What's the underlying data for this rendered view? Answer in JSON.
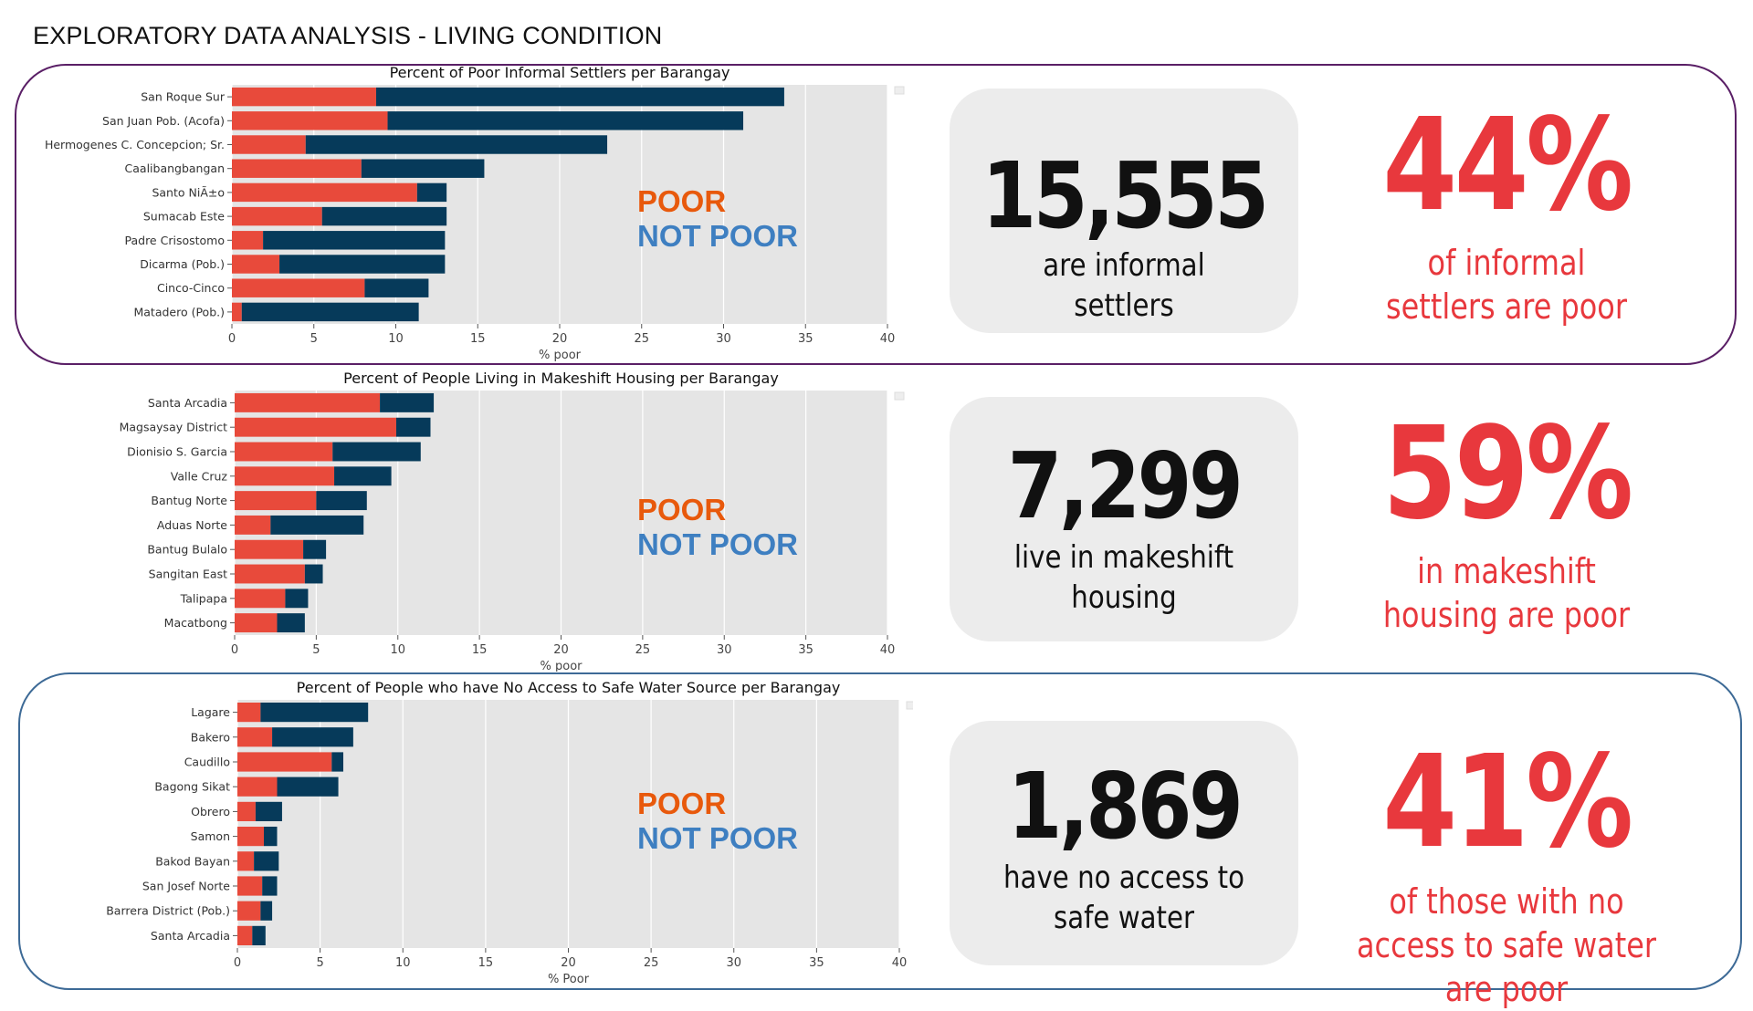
{
  "page": {
    "title": "EXPLORATORY DATA ANALYSIS - LIVING CONDITION"
  },
  "colors": {
    "poor": "#e84a3b",
    "not_poor": "#063a5a",
    "legend_poor": "#e8590c",
    "legend_not_poor": "#3e7fc1",
    "highlight": "#e8383d"
  },
  "chart_data": [
    {
      "type": "bar",
      "orientation": "horizontal",
      "stacked": true,
      "title": "Percent of Poor Informal Settlers per Barangay",
      "xlabel": "% poor",
      "xlim": [
        0,
        40
      ],
      "xticks": [
        0,
        5,
        10,
        15,
        20,
        25,
        30,
        35,
        40
      ],
      "grid": true,
      "categories": [
        "San Roque Sur",
        "San Juan Pob. (Acofa)",
        "Hermogenes C. Concepcion; Sr.",
        "Caalibangbangan",
        "Santo NiÃ±o",
        "Sumacab Este",
        "Padre Crisostomo",
        "Dicarma (Pob.)",
        "Cinco-Cinco",
        "Matadero (Pob.)"
      ],
      "series": [
        {
          "values": [
            8.8,
            9.5,
            4.5,
            7.9,
            11.3,
            5.5,
            1.9,
            2.9,
            8.1,
            0.6
          ]
        },
        {
          "values": [
            24.9,
            21.7,
            18.4,
            7.5,
            1.8,
            7.6,
            11.1,
            10.1,
            3.9,
            10.8
          ]
        }
      ],
      "legend_labels": {
        "poor": "POOR",
        "not_poor": "NOT POOR"
      }
    },
    {
      "type": "bar",
      "orientation": "horizontal",
      "stacked": true,
      "title": "Percent of People Living in Makeshift Housing per Barangay",
      "xlabel": "% poor",
      "xlim": [
        0,
        40
      ],
      "xticks": [
        0,
        5,
        10,
        15,
        20,
        25,
        30,
        35,
        40
      ],
      "grid": true,
      "categories": [
        "Santa Arcadia",
        "Magsaysay District",
        "Dionisio S. Garcia",
        "Valle Cruz",
        "Bantug Norte",
        "Aduas Norte",
        "Bantug Bulalo",
        "Sangitan East",
        "Talipapa",
        "Macatbong"
      ],
      "series": [
        {
          "values": [
            8.9,
            9.9,
            6.0,
            6.1,
            5.0,
            2.2,
            4.2,
            4.3,
            3.1,
            2.6
          ]
        },
        {
          "values": [
            3.3,
            2.1,
            5.4,
            3.5,
            3.1,
            5.7,
            1.4,
            1.1,
            1.4,
            1.7
          ]
        }
      ],
      "legend_labels": {
        "poor": "POOR",
        "not_poor": "NOT POOR"
      }
    },
    {
      "type": "bar",
      "orientation": "horizontal",
      "stacked": true,
      "title": "Percent of People who have No Access to Safe Water Source per Barangay",
      "xlabel": "% Poor",
      "xlim": [
        0,
        40
      ],
      "xticks": [
        0,
        5,
        10,
        15,
        20,
        25,
        30,
        35,
        40
      ],
      "grid": true,
      "categories": [
        "Lagare",
        "Bakero",
        "Caudillo",
        "Bagong Sikat",
        "Obrero",
        "Samon",
        "Bakod Bayan",
        "San Josef Norte",
        "Barrera District (Pob.)",
        "Santa Arcadia"
      ],
      "series": [
        {
          "values": [
            1.4,
            2.1,
            5.7,
            2.4,
            1.1,
            1.6,
            1.0,
            1.5,
            1.4,
            0.9
          ]
        },
        {
          "values": [
            6.5,
            4.9,
            0.7,
            3.7,
            1.6,
            0.8,
            1.5,
            0.9,
            0.7,
            0.8
          ]
        }
      ],
      "legend_labels": {
        "poor": "POOR",
        "not_poor": "NOT POOR"
      }
    }
  ],
  "stats": [
    {
      "number": "15,555",
      "caption": "are informal settlers",
      "percent": "44%",
      "percent_caption": "of informal settlers are poor"
    },
    {
      "number": "7,299",
      "caption": "live in makeshift housing",
      "percent": "59%",
      "percent_caption": "in makeshift housing are poor"
    },
    {
      "number": "1,869",
      "caption": "have no access to safe water",
      "percent": "41%",
      "percent_caption": "of those with no access to safe water are poor"
    }
  ]
}
